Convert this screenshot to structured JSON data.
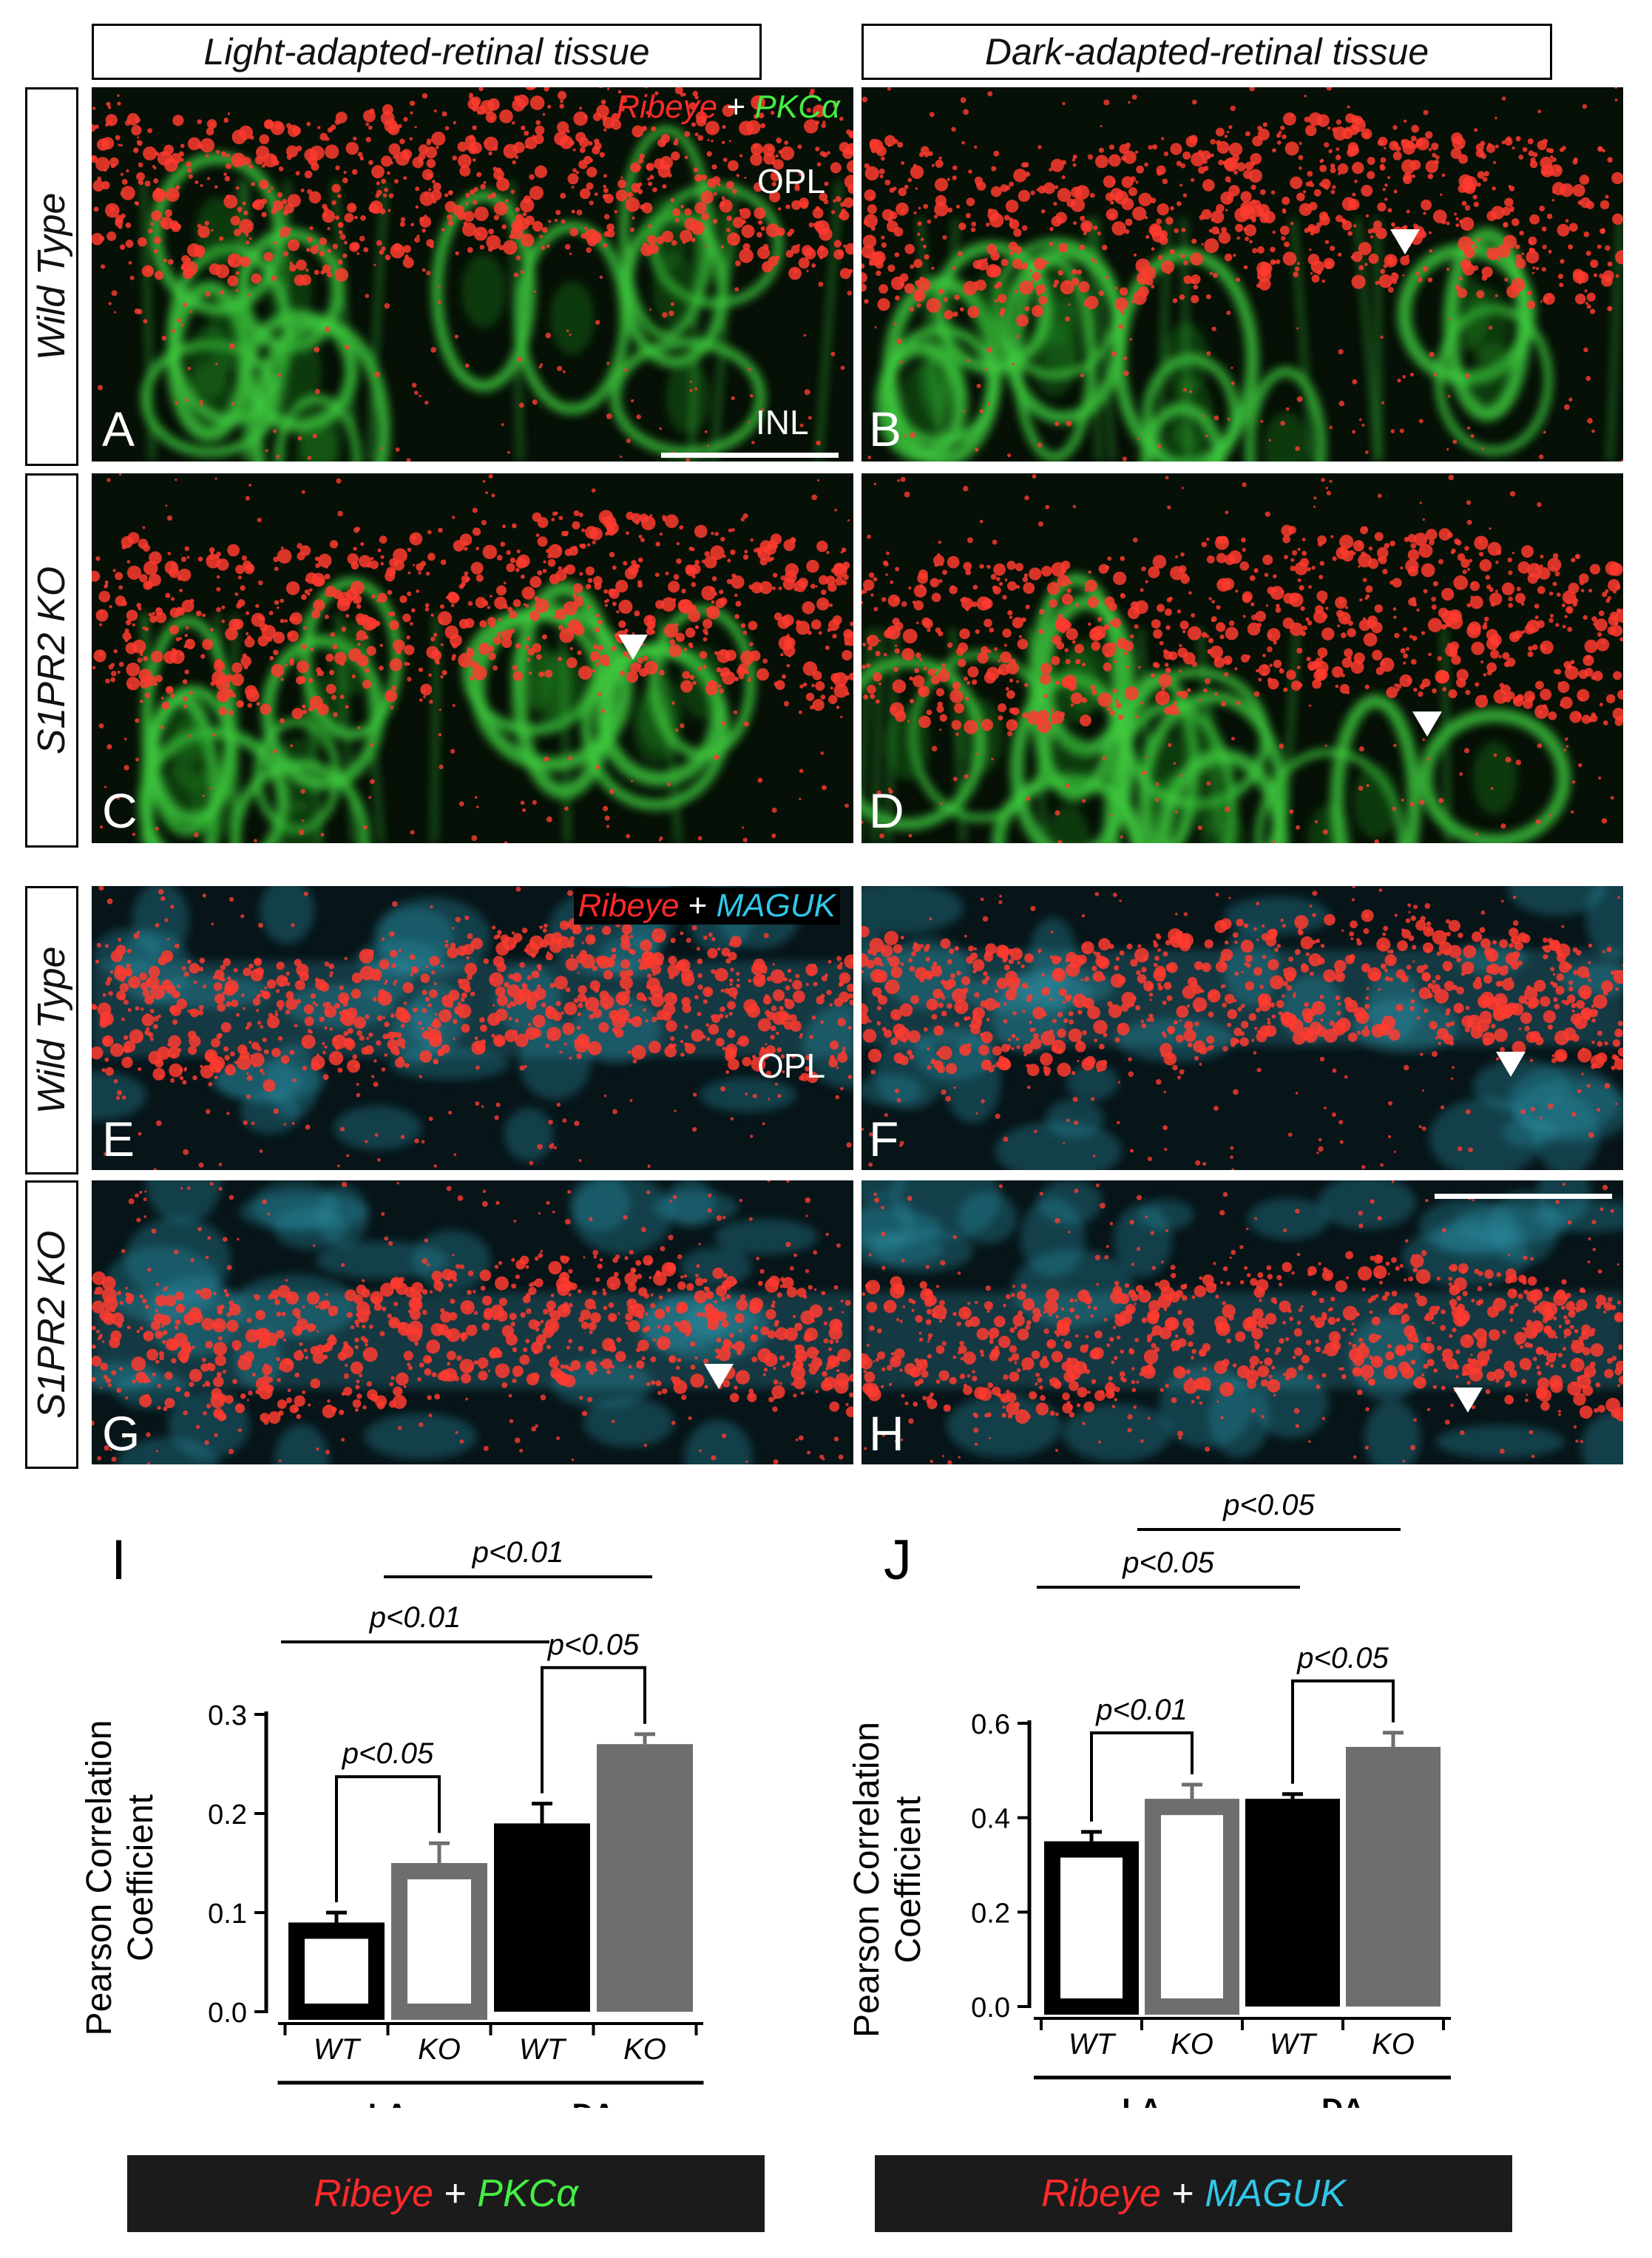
{
  "headers": {
    "light": "Light-adapted-retinal tissue",
    "dark": "Dark-adapted-retinal tissue"
  },
  "row_labels": {
    "wt_top": "Wild Type",
    "ko_top": "S1PR2 KO",
    "wt_bottom": "Wild Type",
    "ko_bottom": "S1PR2 KO"
  },
  "panels": {
    "A": "A",
    "B": "B",
    "C": "C",
    "D": "D",
    "E": "E",
    "F": "F",
    "G": "G",
    "H": "H"
  },
  "layer_labels": {
    "opl": "OPL",
    "inl": "INL",
    "opl2": "OPL"
  },
  "stains": {
    "top": {
      "red": "Ribeye",
      "plus": "+",
      "other": "PKCα"
    },
    "bottom": {
      "red": "Ribeye",
      "plus": "+",
      "other": "MAGUK"
    }
  },
  "colors": {
    "ribeye": "#ff2a2a",
    "pkc": "#44ee44",
    "maguk": "#2fc7e8",
    "wt_bar": "#000000",
    "ko_bar": "#6e6e6e"
  },
  "chart_data": [
    {
      "panel": "I",
      "type": "bar",
      "ylabel": "Pearson Correlation Coefficient",
      "ylim": [
        0,
        0.3
      ],
      "yticks": [
        "0.0",
        "0.1",
        "0.2",
        "0.3"
      ],
      "categories": [
        "WT",
        "KO",
        "WT",
        "KO"
      ],
      "groups": [
        "LA",
        "DA"
      ],
      "values": [
        0.09,
        0.15,
        0.19,
        0.27
      ],
      "errors": [
        0.01,
        0.02,
        0.02,
        0.01
      ],
      "styles": [
        "open-black",
        "open-gray",
        "filled-black",
        "filled-gray"
      ],
      "significance": [
        {
          "from": 0,
          "to": 1,
          "label": "p<0.05"
        },
        {
          "from": 2,
          "to": 3,
          "label": "p<0.05"
        },
        {
          "from": 0,
          "to": 2,
          "label": "p<0.01"
        },
        {
          "from": 1,
          "to": 3,
          "label": "p<0.01"
        }
      ],
      "legend": {
        "red": "Ribeye",
        "plus": "+",
        "other": "PKCα"
      }
    },
    {
      "panel": "J",
      "type": "bar",
      "ylabel": "Pearson Correlation Coefficient",
      "ylim": [
        0,
        0.6
      ],
      "yticks": [
        "0.0",
        "0.2",
        "0.4",
        "0.6"
      ],
      "categories": [
        "WT",
        "KO",
        "WT",
        "KO"
      ],
      "groups": [
        "LA",
        "DA"
      ],
      "values": [
        0.35,
        0.44,
        0.44,
        0.55
      ],
      "errors": [
        0.02,
        0.03,
        0.01,
        0.03
      ],
      "styles": [
        "open-black",
        "open-gray",
        "filled-black",
        "filled-gray"
      ],
      "significance": [
        {
          "from": 0,
          "to": 1,
          "label": "p<0.01"
        },
        {
          "from": 2,
          "to": 3,
          "label": "p<0.05"
        },
        {
          "from": 0,
          "to": 2,
          "label": "p<0.05"
        },
        {
          "from": 1,
          "to": 3,
          "label": "p<0.05"
        }
      ],
      "legend": {
        "red": "Ribeye",
        "plus": "+",
        "other": "MAGUK"
      }
    }
  ]
}
